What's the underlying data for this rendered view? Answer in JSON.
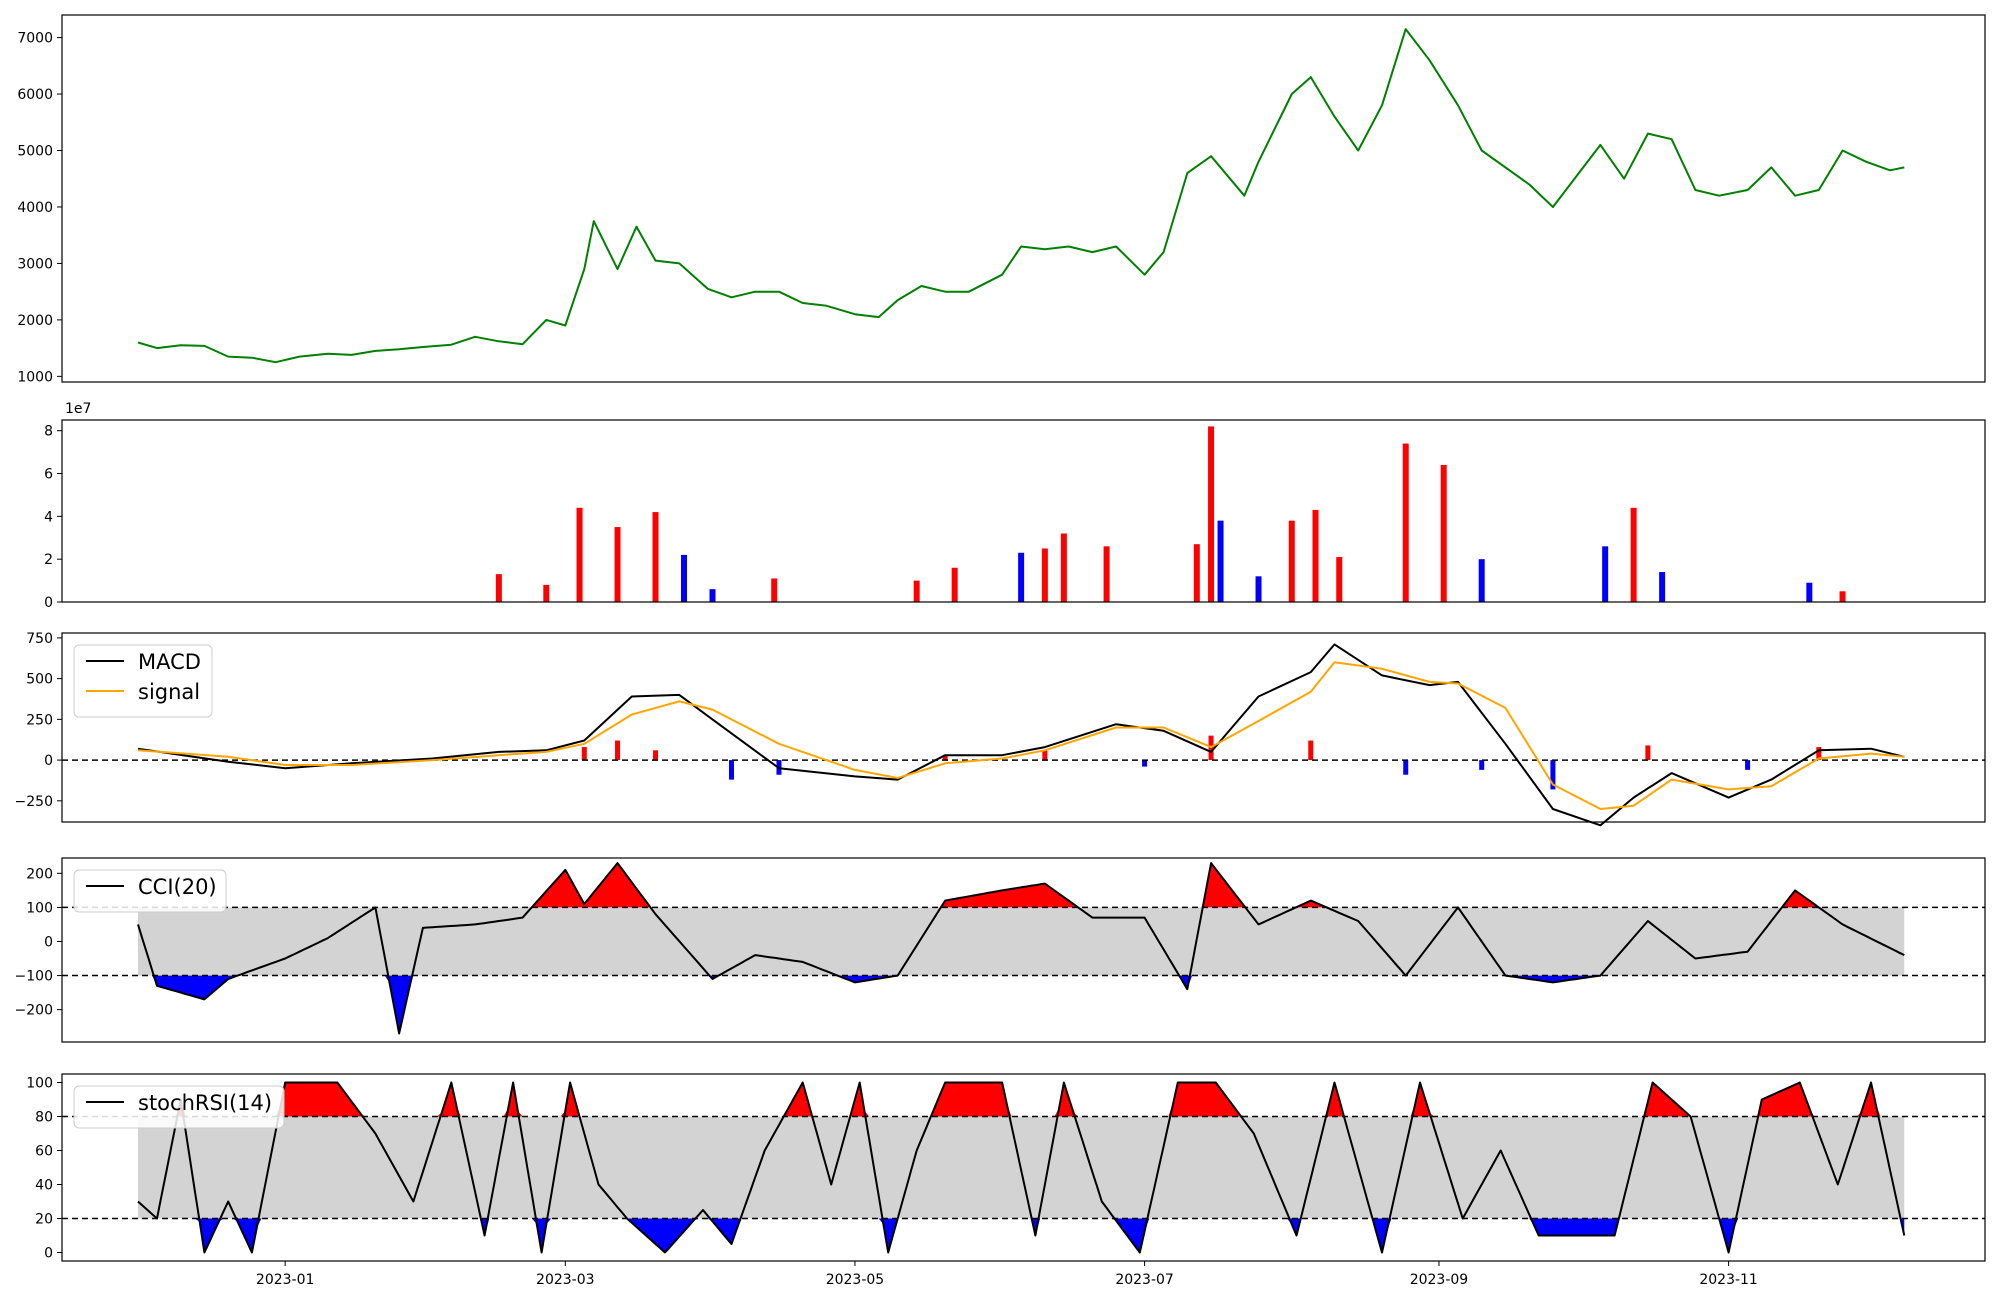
{
  "chart_data": [
    {
      "panel": "price",
      "type": "line",
      "color": "#008000",
      "ylim": [
        900,
        7400
      ],
      "yticks": [
        1000,
        2000,
        3000,
        4000,
        5000,
        6000,
        7000
      ],
      "ytick_labels": [
        "1000",
        "2000",
        "3000",
        "4000",
        "5000",
        "6000",
        "7000"
      ],
      "x": [
        "2022-12-01",
        "2022-12-05",
        "2022-12-10",
        "2022-12-15",
        "2022-12-20",
        "2022-12-25",
        "2022-12-30",
        "2023-01-04",
        "2023-01-10",
        "2023-01-15",
        "2023-01-20",
        "2023-01-25",
        "2023-01-30",
        "2023-02-05",
        "2023-02-10",
        "2023-02-15",
        "2023-02-20",
        "2023-02-25",
        "2023-03-01",
        "2023-03-05",
        "2023-03-07",
        "2023-03-12",
        "2023-03-16",
        "2023-03-20",
        "2023-03-25",
        "2023-03-31",
        "2023-04-05",
        "2023-04-10",
        "2023-04-15",
        "2023-04-20",
        "2023-04-25",
        "2023-05-01",
        "2023-05-06",
        "2023-05-10",
        "2023-05-15",
        "2023-05-20",
        "2023-05-25",
        "2023-06-01",
        "2023-06-05",
        "2023-06-10",
        "2023-06-15",
        "2023-06-20",
        "2023-06-25",
        "2023-07-01",
        "2023-07-05",
        "2023-07-10",
        "2023-07-15",
        "2023-07-22",
        "2023-07-25",
        "2023-08-01",
        "2023-08-05",
        "2023-08-10",
        "2023-08-15",
        "2023-08-20",
        "2023-08-25",
        "2023-08-30",
        "2023-09-05",
        "2023-09-10",
        "2023-09-20",
        "2023-09-25",
        "2023-10-05",
        "2023-10-10",
        "2023-10-15",
        "2023-10-20",
        "2023-10-25",
        "2023-10-30",
        "2023-11-05",
        "2023-11-10",
        "2023-11-15",
        "2023-11-20",
        "2023-11-25",
        "2023-11-30",
        "2023-12-05",
        "2023-12-08"
      ],
      "values": [
        1600,
        1500,
        1550,
        1540,
        1350,
        1330,
        1250,
        1350,
        1400,
        1380,
        1450,
        1480,
        1520,
        1560,
        1700,
        1620,
        1570,
        2000,
        1900,
        2900,
        3750,
        2900,
        3650,
        3050,
        3000,
        2550,
        2400,
        2500,
        2500,
        2300,
        2250,
        2100,
        2050,
        2350,
        2600,
        2500,
        2500,
        2800,
        3300,
        3250,
        3300,
        3200,
        3300,
        2800,
        3200,
        4600,
        4900,
        4200,
        4800,
        6000,
        6300,
        5600,
        5000,
        5800,
        7150,
        6600,
        5800,
        5000,
        4400,
        4000,
        5100,
        4500,
        5300,
        5200,
        4300,
        4200,
        4300,
        4700,
        4200,
        4300,
        5000,
        4800,
        4650,
        4700
      ]
    },
    {
      "panel": "volume",
      "type": "bar",
      "ylim": [
        0,
        85000000.0
      ],
      "yticks": [
        0,
        20000000.0,
        40000000.0,
        60000000.0,
        80000000.0
      ],
      "ytick_labels": [
        "0",
        "2",
        "4",
        "6",
        "8"
      ],
      "offset_label": "1e7",
      "colors": {
        "up": "#ff0000",
        "down": "#0000ff"
      },
      "bars": [
        {
          "date": "2023-02-15",
          "value": 13000000,
          "dir": "up"
        },
        {
          "date": "2023-02-25",
          "value": 8000000,
          "dir": "up"
        },
        {
          "date": "2023-03-04",
          "value": 44000000,
          "dir": "up"
        },
        {
          "date": "2023-03-12",
          "value": 35000000,
          "dir": "up"
        },
        {
          "date": "2023-03-20",
          "value": 42000000,
          "dir": "up"
        },
        {
          "date": "2023-03-26",
          "value": 22000000,
          "dir": "down"
        },
        {
          "date": "2023-04-01",
          "value": 6000000,
          "dir": "down"
        },
        {
          "date": "2023-04-14",
          "value": 11000000,
          "dir": "up"
        },
        {
          "date": "2023-05-14",
          "value": 10000000,
          "dir": "up"
        },
        {
          "date": "2023-05-22",
          "value": 16000000,
          "dir": "up"
        },
        {
          "date": "2023-06-05",
          "value": 23000000,
          "dir": "down"
        },
        {
          "date": "2023-06-10",
          "value": 25000000,
          "dir": "up"
        },
        {
          "date": "2023-06-14",
          "value": 32000000,
          "dir": "up"
        },
        {
          "date": "2023-06-23",
          "value": 26000000,
          "dir": "up"
        },
        {
          "date": "2023-07-12",
          "value": 27000000,
          "dir": "up"
        },
        {
          "date": "2023-07-15",
          "value": 82000000,
          "dir": "up"
        },
        {
          "date": "2023-07-17",
          "value": 38000000,
          "dir": "down"
        },
        {
          "date": "2023-07-25",
          "value": 12000000,
          "dir": "down"
        },
        {
          "date": "2023-08-01",
          "value": 38000000,
          "dir": "up"
        },
        {
          "date": "2023-08-06",
          "value": 43000000,
          "dir": "up"
        },
        {
          "date": "2023-08-11",
          "value": 21000000,
          "dir": "up"
        },
        {
          "date": "2023-08-25",
          "value": 74000000,
          "dir": "up"
        },
        {
          "date": "2023-09-02",
          "value": 64000000,
          "dir": "up"
        },
        {
          "date": "2023-09-10",
          "value": 20000000,
          "dir": "down"
        },
        {
          "date": "2023-10-06",
          "value": 26000000,
          "dir": "down"
        },
        {
          "date": "2023-10-12",
          "value": 44000000,
          "dir": "up"
        },
        {
          "date": "2023-10-18",
          "value": 14000000,
          "dir": "down"
        },
        {
          "date": "2023-11-18",
          "value": 9000000,
          "dir": "down"
        },
        {
          "date": "2023-11-25",
          "value": 5000000,
          "dir": "up"
        }
      ]
    },
    {
      "panel": "macd",
      "type": "line",
      "ylim": [
        -380,
        780
      ],
      "yticks": [
        -250,
        0,
        250,
        500,
        750
      ],
      "ytick_labels": [
        "−250",
        "0",
        "250",
        "500",
        "750"
      ],
      "reference_line": 0,
      "legend": {
        "position": "upper left",
        "entries": [
          "MACD",
          "signal"
        ]
      },
      "series": [
        {
          "name": "MACD",
          "color": "#000000",
          "x": [
            "2022-12-01",
            "2022-12-20",
            "2023-01-01",
            "2023-01-15",
            "2023-02-01",
            "2023-02-15",
            "2023-02-25",
            "2023-03-05",
            "2023-03-15",
            "2023-03-25",
            "2023-04-01",
            "2023-04-15",
            "2023-05-01",
            "2023-05-10",
            "2023-05-20",
            "2023-06-01",
            "2023-06-10",
            "2023-06-25",
            "2023-07-05",
            "2023-07-15",
            "2023-07-25",
            "2023-08-05",
            "2023-08-10",
            "2023-08-20",
            "2023-08-30",
            "2023-09-05",
            "2023-09-15",
            "2023-09-25",
            "2023-10-05",
            "2023-10-12",
            "2023-10-20",
            "2023-11-01",
            "2023-11-10",
            "2023-11-20",
            "2023-12-01",
            "2023-12-08"
          ],
          "values": [
            70,
            -10,
            -50,
            -20,
            10,
            50,
            60,
            120,
            390,
            400,
            250,
            -50,
            -100,
            -120,
            30,
            30,
            80,
            220,
            180,
            50,
            390,
            540,
            710,
            520,
            460,
            480,
            100,
            -300,
            -400,
            -230,
            -80,
            -230,
            -120,
            60,
            70,
            20
          ]
        },
        {
          "name": "signal",
          "color": "#ffa500",
          "x": [
            "2022-12-01",
            "2022-12-20",
            "2023-01-01",
            "2023-01-15",
            "2023-02-01",
            "2023-02-15",
            "2023-02-25",
            "2023-03-05",
            "2023-03-15",
            "2023-03-25",
            "2023-04-01",
            "2023-04-15",
            "2023-05-01",
            "2023-05-10",
            "2023-05-20",
            "2023-06-01",
            "2023-06-10",
            "2023-06-25",
            "2023-07-05",
            "2023-07-15",
            "2023-07-25",
            "2023-08-05",
            "2023-08-10",
            "2023-08-20",
            "2023-08-30",
            "2023-09-05",
            "2023-09-15",
            "2023-09-25",
            "2023-10-05",
            "2023-10-12",
            "2023-10-20",
            "2023-11-01",
            "2023-11-10",
            "2023-11-20",
            "2023-12-01",
            "2023-12-08"
          ],
          "values": [
            60,
            20,
            -30,
            -30,
            0,
            30,
            50,
            100,
            280,
            360,
            310,
            100,
            -60,
            -110,
            -20,
            10,
            60,
            200,
            200,
            80,
            240,
            420,
            600,
            560,
            480,
            470,
            320,
            -150,
            -300,
            -280,
            -120,
            -180,
            -160,
            10,
            40,
            20
          ]
        }
      ],
      "histogram": {
        "x": [
          "2023-03-05",
          "2023-03-12",
          "2023-03-20",
          "2023-04-05",
          "2023-04-15",
          "2023-05-20",
          "2023-06-10",
          "2023-07-01",
          "2023-07-15",
          "2023-08-05",
          "2023-08-25",
          "2023-09-10",
          "2023-09-25",
          "2023-10-15",
          "2023-11-05",
          "2023-11-20"
        ],
        "values": [
          80,
          120,
          60,
          -120,
          -90,
          30,
          60,
          -40,
          150,
          120,
          -90,
          -60,
          -180,
          90,
          -60,
          80
        ]
      }
    },
    {
      "panel": "cci",
      "type": "line",
      "ylim": [
        -295,
        245
      ],
      "yticks": [
        -200,
        -100,
        0,
        100,
        200
      ],
      "ytick_labels": [
        "−200",
        "−100",
        "0",
        "100",
        "200"
      ],
      "reference_lines": [
        100,
        -100
      ],
      "band": [
        -100,
        100
      ],
      "legend": {
        "position": "upper left",
        "entries": [
          "CCI(20)"
        ]
      },
      "series": [
        {
          "name": "CCI(20)",
          "color": "#000000",
          "x": [
            "2022-12-01",
            "2022-12-05",
            "2022-12-15",
            "2022-12-20",
            "2023-01-01",
            "2023-01-10",
            "2023-01-20",
            "2023-01-25",
            "2023-01-30",
            "2023-02-10",
            "2023-02-20",
            "2023-03-01",
            "2023-03-05",
            "2023-03-12",
            "2023-03-20",
            "2023-04-01",
            "2023-04-10",
            "2023-04-20",
            "2023-05-01",
            "2023-05-10",
            "2023-05-20",
            "2023-06-01",
            "2023-06-10",
            "2023-06-20",
            "2023-07-01",
            "2023-07-10",
            "2023-07-15",
            "2023-07-25",
            "2023-08-05",
            "2023-08-15",
            "2023-08-25",
            "2023-09-05",
            "2023-09-15",
            "2023-09-25",
            "2023-10-05",
            "2023-10-15",
            "2023-10-25",
            "2023-11-05",
            "2023-11-15",
            "2023-11-25",
            "2023-12-08"
          ],
          "values": [
            50,
            -130,
            -170,
            -110,
            -50,
            10,
            100,
            -270,
            40,
            50,
            70,
            210,
            110,
            230,
            80,
            -110,
            -40,
            -60,
            -120,
            -100,
            120,
            150,
            170,
            70,
            70,
            -140,
            230,
            50,
            120,
            60,
            -100,
            100,
            -100,
            -120,
            -100,
            60,
            -50,
            -30,
            150,
            50,
            -40
          ]
        }
      ]
    },
    {
      "panel": "stochrsi",
      "type": "line",
      "ylim": [
        -5,
        105
      ],
      "yticks": [
        0,
        20,
        40,
        60,
        80,
        100
      ],
      "ytick_labels": [
        "0",
        "20",
        "40",
        "60",
        "80",
        "100"
      ],
      "reference_lines": [
        80,
        20
      ],
      "band": [
        20,
        80
      ],
      "legend": {
        "position": "upper left",
        "entries": [
          "stochRSI(14)"
        ]
      },
      "series": [
        {
          "name": "stochRSI(14)",
          "color": "#000000",
          "x": [
            "2022-12-01",
            "2022-12-05",
            "2022-12-10",
            "2022-12-15",
            "2022-12-20",
            "2022-12-25",
            "2023-01-01",
            "2023-01-06",
            "2023-01-12",
            "2023-01-20",
            "2023-01-28",
            "2023-02-05",
            "2023-02-12",
            "2023-02-18",
            "2023-02-24",
            "2023-03-02",
            "2023-03-08",
            "2023-03-14",
            "2023-03-22",
            "2023-03-30",
            "2023-04-05",
            "2023-04-12",
            "2023-04-20",
            "2023-04-26",
            "2023-05-02",
            "2023-05-08",
            "2023-05-14",
            "2023-05-20",
            "2023-06-01",
            "2023-06-08",
            "2023-06-14",
            "2023-06-22",
            "2023-06-30",
            "2023-07-08",
            "2023-07-16",
            "2023-07-24",
            "2023-08-02",
            "2023-08-10",
            "2023-08-20",
            "2023-08-28",
            "2023-09-06",
            "2023-09-14",
            "2023-09-22",
            "2023-09-30",
            "2023-10-08",
            "2023-10-16",
            "2023-10-24",
            "2023-11-01",
            "2023-11-08",
            "2023-11-16",
            "2023-11-24",
            "2023-12-01",
            "2023-12-08"
          ],
          "values": [
            30,
            20,
            90,
            0,
            30,
            0,
            100,
            100,
            100,
            70,
            30,
            100,
            10,
            100,
            0,
            100,
            40,
            20,
            0,
            25,
            5,
            60,
            100,
            40,
            100,
            0,
            60,
            100,
            100,
            10,
            100,
            30,
            0,
            100,
            100,
            70,
            10,
            100,
            0,
            100,
            20,
            60,
            10,
            10,
            10,
            100,
            80,
            0,
            90,
            100,
            40,
            100,
            10
          ]
        }
      ],
      "xticks": [
        "2023-01-01",
        "2023-03-01",
        "2023-05-01",
        "2023-07-01",
        "2023-09-01",
        "2023-11-01"
      ],
      "xtick_labels": [
        "2023-01",
        "2023-03",
        "2023-05",
        "2023-07",
        "2023-09",
        "2023-11"
      ]
    }
  ]
}
